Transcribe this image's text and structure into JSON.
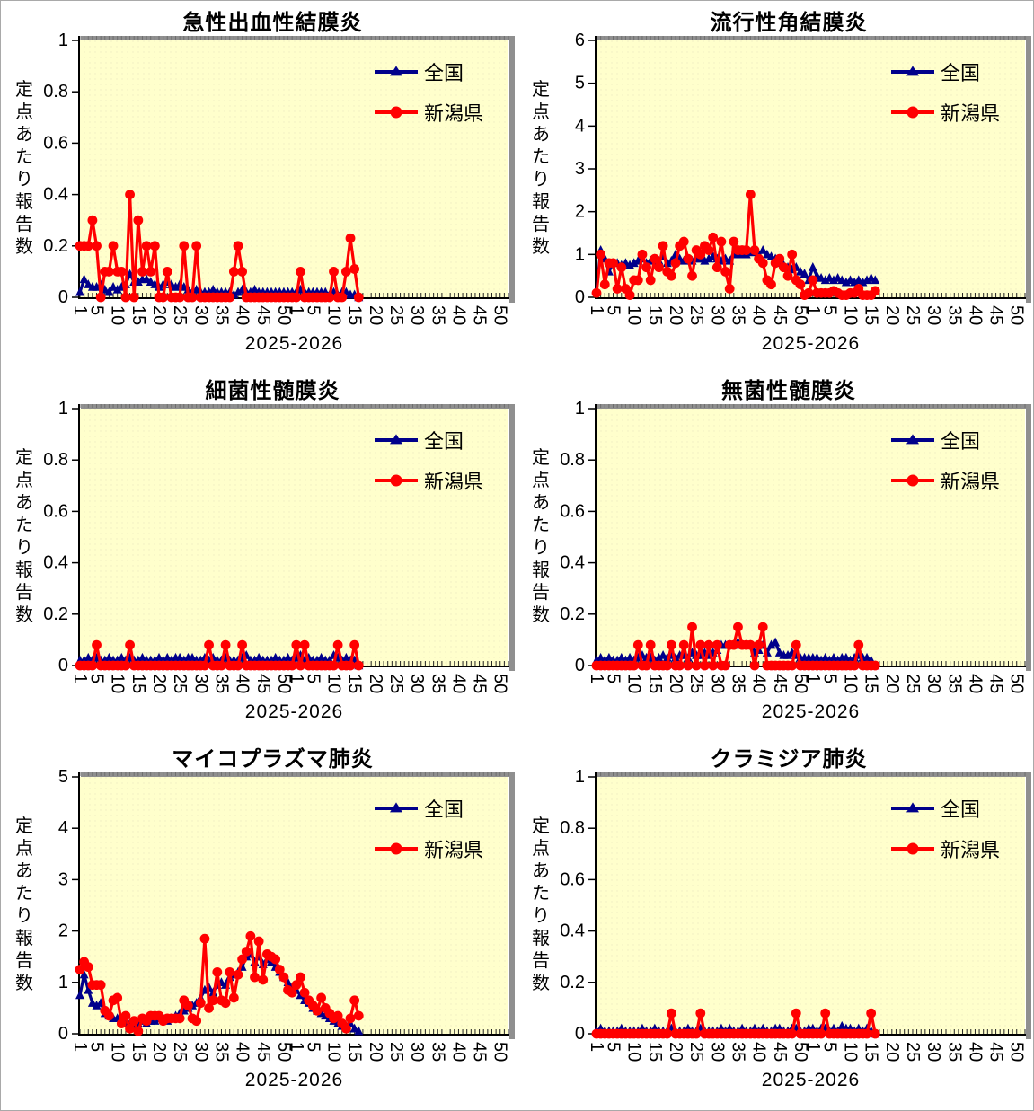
{
  "legend": {
    "national": "全国",
    "niigata": "新潟県"
  },
  "axis": {
    "x_label": "2025-2026",
    "y_label": "定点あたり報告数"
  },
  "colors": {
    "national": "#00008B",
    "niigata": "#FF0000",
    "plot_bg": "#FFFFCC",
    "frame_gray": "#8f8f8f",
    "axis_black": "#000000"
  },
  "chart_data": [
    {
      "type": "line",
      "title": "急性出血性結膜炎",
      "xlabel": "2025-2026",
      "ylabel": "定点あたり報告数",
      "ylim": [
        0,
        1
      ],
      "yticks": [
        0,
        0.2,
        0.4,
        0.6,
        0.8,
        1
      ],
      "weeks_per_year": 52,
      "years": [
        "2025",
        "2026"
      ],
      "xtick_weeks": [
        1,
        5,
        10,
        15,
        20,
        25,
        30,
        35,
        40,
        45,
        50
      ],
      "series": [
        {
          "name": "全国",
          "color": "#00008B",
          "marker": "triangle",
          "values": [
            0.02,
            0.07,
            0.05,
            0.04,
            0.04,
            0.05,
            0.03,
            0.02,
            0.04,
            0.03,
            0.04,
            0.05,
            0.09,
            0.06,
            0.06,
            0.07,
            0.07,
            0.06,
            0.05,
            0.04,
            0.05,
            0.06,
            0.05,
            0.04,
            0.05,
            0.04,
            0.03,
            0.02,
            0.03,
            0.02,
            0.02,
            0.02,
            0.03,
            0.02,
            0.02,
            0.02,
            0.02,
            0.01,
            0.02,
            0.03,
            0.02,
            0.02,
            0.03,
            0.02,
            0.02,
            0.02,
            0.02,
            0.02,
            0.02,
            0.02,
            0.02,
            0.02,
            0.02,
            0.03,
            0.02,
            0.02,
            0.02,
            0.02,
            0.02,
            0.02,
            0.01,
            0.02,
            0.01,
            0.02,
            0.02,
            0.01,
            0.01,
            0
          ]
        },
        {
          "name": "新潟県",
          "color": "#FF0000",
          "marker": "circle",
          "values": [
            0.2,
            0.2,
            0.2,
            0.3,
            0.2,
            0,
            0.1,
            0.1,
            0.2,
            0.1,
            0.1,
            0,
            0.4,
            0,
            0.3,
            0.1,
            0.2,
            0.1,
            0.2,
            0,
            0,
            0.1,
            0,
            0,
            0,
            0.2,
            0,
            0,
            0.2,
            0,
            0,
            0,
            0,
            0,
            0,
            0,
            0,
            0.1,
            0.2,
            0.1,
            0,
            0,
            0,
            0,
            0,
            0,
            0,
            0,
            0,
            0,
            0,
            0,
            0,
            0.1,
            0,
            0,
            0,
            0,
            0,
            0,
            0,
            0.1,
            0,
            0,
            0.1,
            0.23,
            0.11,
            0
          ]
        }
      ]
    },
    {
      "type": "line",
      "title": "流行性角結膜炎",
      "xlabel": "2025-2026",
      "ylabel": "定点あたり報告数",
      "ylim": [
        0,
        6
      ],
      "yticks": [
        0,
        1,
        2,
        3,
        4,
        5,
        6
      ],
      "weeks_per_year": 52,
      "years": [
        "2025",
        "2026"
      ],
      "xtick_weeks": [
        1,
        5,
        10,
        15,
        20,
        25,
        30,
        35,
        40,
        45,
        50
      ],
      "series": [
        {
          "name": "全国",
          "color": "#00008B",
          "marker": "triangle",
          "values": [
            0.15,
            1.1,
            0.9,
            0.6,
            0.8,
            0.8,
            0.75,
            0.8,
            0.75,
            0.8,
            0.85,
            0.9,
            0.8,
            0.85,
            0.9,
            0.85,
            0.95,
            0.8,
            0.85,
            1.0,
            0.9,
            0.85,
            0.9,
            0.85,
            0.9,
            0.9,
            0.85,
            0.9,
            0.95,
            0.9,
            0.85,
            0.9,
            0.85,
            1.0,
            1.0,
            1.0,
            1.0,
            1.05,
            1.05,
            1.0,
            1.1,
            1.0,
            0.95,
            0.9,
            0.8,
            0.75,
            0.7,
            0.65,
            0.7,
            0.6,
            0.55,
            0.4,
            0.7,
            0.5,
            0.45,
            0.4,
            0.45,
            0.4,
            0.45,
            0.4,
            0.35,
            0.4,
            0.35,
            0.4,
            0.35,
            0.4,
            0.45,
            0.4
          ]
        },
        {
          "name": "新潟県",
          "color": "#FF0000",
          "marker": "circle",
          "values": [
            0.1,
            1.0,
            0.3,
            0.8,
            0.8,
            0.2,
            0.7,
            0.2,
            0.05,
            0.4,
            0.4,
            1.0,
            0.7,
            0.4,
            0.9,
            0.7,
            1.2,
            0.6,
            0.5,
            0.8,
            1.2,
            1.3,
            0.9,
            0.5,
            1.1,
            1.0,
            1.2,
            1.1,
            1.4,
            0.7,
            1.3,
            0.6,
            0.2,
            1.3,
            1.1,
            1.1,
            1.1,
            2.4,
            1.1,
            0.9,
            0.8,
            0.4,
            0.3,
            0.8,
            0.9,
            0.7,
            0.5,
            1.0,
            0.4,
            0.3,
            0.05,
            0.1,
            0.4,
            0.1,
            0.1,
            0.1,
            0.1,
            0.15,
            0.1,
            0.05,
            0.05,
            0.1,
            0.1,
            0.2,
            0.05,
            0.05,
            0.05,
            0.15
          ]
        }
      ]
    },
    {
      "type": "line",
      "title": "細菌性髄膜炎",
      "xlabel": "2025-2026",
      "ylabel": "定点あたり報告数",
      "ylim": [
        0,
        1
      ],
      "yticks": [
        0,
        0.2,
        0.4,
        0.6,
        0.8,
        1
      ],
      "weeks_per_year": 52,
      "years": [
        "2025",
        "2026"
      ],
      "xtick_weeks": [
        1,
        5,
        10,
        15,
        20,
        25,
        30,
        35,
        40,
        45,
        50
      ],
      "series": [
        {
          "name": "全国",
          "color": "#00008B",
          "marker": "triangle",
          "values": [
            0.02,
            0.02,
            0.03,
            0.02,
            0.03,
            0.02,
            0.02,
            0.03,
            0.02,
            0.02,
            0.03,
            0.02,
            0.03,
            0.02,
            0.02,
            0.03,
            0.02,
            0.02,
            0.02,
            0.03,
            0.02,
            0.03,
            0.02,
            0.03,
            0.03,
            0.02,
            0.03,
            0.03,
            0.02,
            0.02,
            0.03,
            0.02,
            0.03,
            0.02,
            0.02,
            0.03,
            0.02,
            0.02,
            0.02,
            0.03,
            0.04,
            0.02,
            0.02,
            0.03,
            0.02,
            0.02,
            0.02,
            0.03,
            0.02,
            0.02,
            0.03,
            0.02,
            0.03,
            0.04,
            0.02,
            0.03,
            0.02,
            0.02,
            0.03,
            0.02,
            0.02,
            0.04,
            0.03,
            0.02,
            0.03,
            0.02,
            0.02,
            0
          ]
        },
        {
          "name": "新潟県",
          "color": "#FF0000",
          "marker": "circle",
          "values": [
            0,
            0,
            0,
            0,
            0.08,
            0,
            0,
            0,
            0,
            0,
            0,
            0,
            0.08,
            0,
            0,
            0,
            0,
            0,
            0,
            0,
            0,
            0,
            0,
            0,
            0,
            0,
            0,
            0,
            0,
            0,
            0,
            0.08,
            0,
            0,
            0,
            0.08,
            0,
            0,
            0,
            0.08,
            0,
            0,
            0,
            0,
            0,
            0,
            0,
            0,
            0,
            0,
            0,
            0,
            0.08,
            0,
            0.08,
            0,
            0,
            0,
            0,
            0,
            0,
            0,
            0.08,
            0,
            0,
            0,
            0.08,
            0
          ]
        }
      ]
    },
    {
      "type": "line",
      "title": "無菌性髄膜炎",
      "xlabel": "2025-2026",
      "ylabel": "定点あたり報告数",
      "ylim": [
        0,
        1
      ],
      "yticks": [
        0,
        0.2,
        0.4,
        0.6,
        0.8,
        1
      ],
      "weeks_per_year": 52,
      "years": [
        "2025",
        "2026"
      ],
      "xtick_weeks": [
        1,
        5,
        10,
        15,
        20,
        25,
        30,
        35,
        40,
        45,
        50
      ],
      "series": [
        {
          "name": "全国",
          "color": "#00008B",
          "marker": "triangle",
          "values": [
            0.02,
            0.03,
            0.02,
            0.03,
            0.02,
            0.02,
            0.03,
            0.02,
            0.03,
            0.02,
            0.03,
            0.04,
            0.03,
            0.03,
            0.02,
            0.03,
            0.04,
            0.03,
            0.04,
            0.03,
            0.04,
            0.04,
            0.03,
            0.05,
            0.04,
            0.04,
            0.05,
            0.04,
            0.05,
            0.06,
            0.08,
            0.08,
            0.08,
            0.08,
            0.09,
            0.08,
            0.08,
            0.08,
            0.05,
            0.06,
            0.08,
            0.05,
            0.08,
            0.09,
            0.05,
            0.04,
            0.04,
            0.05,
            0.04,
            0.03,
            0.03,
            0.03,
            0.03,
            0.03,
            0.02,
            0.03,
            0.02,
            0.03,
            0.02,
            0.03,
            0.03,
            0.02,
            0.03,
            0.04,
            0.03,
            0.03,
            0.02,
            0
          ]
        },
        {
          "name": "新潟県",
          "color": "#FF0000",
          "marker": "circle",
          "values": [
            0,
            0,
            0,
            0,
            0,
            0,
            0,
            0,
            0,
            0,
            0.08,
            0,
            0,
            0.08,
            0,
            0,
            0,
            0,
            0.08,
            0,
            0,
            0.08,
            0,
            0.15,
            0,
            0.08,
            0,
            0.08,
            0,
            0.08,
            0,
            0,
            0.08,
            0.08,
            0.15,
            0.08,
            0.08,
            0.08,
            0,
            0.08,
            0.15,
            0,
            0,
            0,
            0,
            0,
            0,
            0,
            0.08,
            0,
            0,
            0,
            0,
            0,
            0,
            0,
            0,
            0,
            0,
            0,
            0,
            0,
            0,
            0.08,
            0,
            0,
            0,
            0
          ]
        }
      ]
    },
    {
      "type": "line",
      "title": "マイコプラズマ肺炎",
      "xlabel": "2025-2026",
      "ylabel": "定点あたり報告数",
      "ylim": [
        0,
        5
      ],
      "yticks": [
        0,
        1,
        2,
        3,
        4,
        5
      ],
      "weeks_per_year": 52,
      "years": [
        "2025",
        "2026"
      ],
      "xtick_weeks": [
        1,
        5,
        10,
        15,
        20,
        25,
        30,
        35,
        40,
        45,
        50
      ],
      "series": [
        {
          "name": "全国",
          "color": "#00008B",
          "marker": "triangle",
          "values": [
            0.75,
            1.15,
            0.85,
            0.6,
            0.55,
            0.6,
            0.4,
            0.35,
            0.3,
            0.3,
            0.25,
            0.2,
            0.2,
            0.15,
            0.2,
            0.25,
            0.2,
            0.25,
            0.25,
            0.3,
            0.3,
            0.25,
            0.3,
            0.35,
            0.4,
            0.45,
            0.5,
            0.55,
            0.6,
            0.7,
            0.85,
            0.9,
            0.8,
            0.95,
            1.0,
            0.95,
            1.1,
            1.15,
            1.2,
            1.3,
            1.5,
            1.55,
            1.4,
            1.5,
            1.35,
            1.45,
            1.4,
            1.3,
            1.2,
            1.1,
            1.0,
            0.9,
            0.85,
            0.75,
            0.65,
            0.6,
            0.5,
            0.45,
            0.4,
            0.35,
            0.3,
            0.25,
            0.2,
            0.15,
            0.15,
            0.2,
            0.1,
            0.05
          ]
        },
        {
          "name": "新潟県",
          "color": "#FF0000",
          "marker": "circle",
          "values": [
            1.25,
            1.4,
            1.3,
            0.95,
            0.95,
            0.95,
            0.45,
            0.35,
            0.65,
            0.7,
            0.2,
            0.35,
            0.1,
            0.25,
            0.05,
            0.3,
            0.25,
            0.35,
            0.35,
            0.35,
            0.25,
            0.3,
            0.3,
            0.3,
            0.3,
            0.65,
            0.55,
            0.3,
            0.25,
            0.6,
            1.85,
            0.5,
            0.65,
            1.2,
            0.65,
            0.6,
            1.2,
            0.7,
            1.15,
            1.45,
            1.6,
            1.9,
            1.1,
            1.8,
            1.05,
            1.55,
            1.5,
            1.45,
            1.25,
            1.1,
            0.85,
            0.8,
            0.95,
            1.1,
            0.8,
            0.65,
            0.55,
            0.45,
            0.7,
            0.5,
            0.4,
            0.3,
            0.35,
            0.2,
            0.1,
            0.3,
            0.65,
            0.35
          ]
        }
      ]
    },
    {
      "type": "line",
      "title": "クラミジア肺炎",
      "xlabel": "2025-2026",
      "ylabel": "定点あたり報告数",
      "ylim": [
        0,
        1
      ],
      "yticks": [
        0,
        0.2,
        0.4,
        0.6,
        0.8,
        1
      ],
      "weeks_per_year": 52,
      "years": [
        "2025",
        "2026"
      ],
      "xtick_weeks": [
        1,
        5,
        10,
        15,
        20,
        25,
        30,
        35,
        40,
        45,
        50
      ],
      "series": [
        {
          "name": "全国",
          "color": "#00008B",
          "marker": "triangle",
          "values": [
            0.01,
            0.02,
            0.01,
            0.01,
            0.01,
            0.01,
            0.02,
            0.01,
            0.01,
            0.01,
            0.01,
            0.02,
            0.01,
            0.01,
            0.02,
            0.01,
            0.01,
            0.01,
            0.02,
            0.01,
            0.01,
            0.01,
            0.02,
            0.01,
            0.01,
            0.02,
            0.01,
            0.01,
            0.01,
            0.01,
            0.02,
            0.01,
            0.02,
            0.01,
            0.01,
            0.02,
            0.01,
            0.01,
            0.02,
            0.01,
            0.02,
            0.01,
            0.01,
            0.02,
            0.02,
            0.01,
            0.01,
            0.02,
            0.02,
            0.01,
            0.01,
            0.02,
            0.02,
            0.01,
            0.02,
            0.02,
            0.01,
            0.02,
            0.01,
            0.03,
            0.02,
            0.02,
            0.01,
            0.02,
            0.01,
            0.02,
            0.01,
            0
          ]
        },
        {
          "name": "新潟県",
          "color": "#FF0000",
          "marker": "circle",
          "values": [
            0,
            0,
            0,
            0,
            0,
            0,
            0,
            0,
            0,
            0,
            0,
            0,
            0,
            0,
            0,
            0,
            0,
            0,
            0.08,
            0,
            0,
            0,
            0,
            0,
            0,
            0.08,
            0,
            0,
            0,
            0,
            0,
            0,
            0,
            0,
            0,
            0,
            0,
            0,
            0,
            0,
            0,
            0,
            0,
            0,
            0,
            0,
            0,
            0,
            0.08,
            0,
            0,
            0,
            0,
            0,
            0,
            0.08,
            0,
            0,
            0,
            0,
            0,
            0,
            0,
            0,
            0,
            0,
            0.08,
            0
          ]
        }
      ]
    }
  ]
}
